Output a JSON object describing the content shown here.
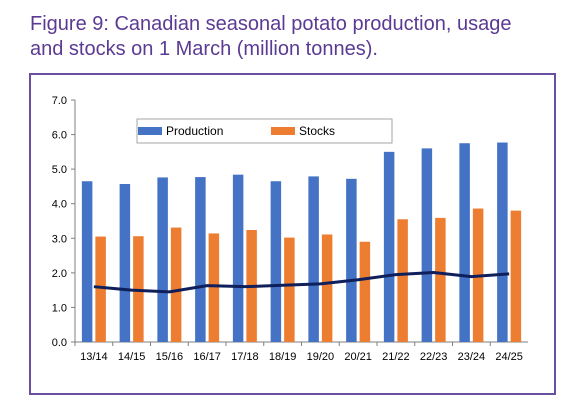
{
  "figure": {
    "title_line1": "Figure 9: Canadian seasonal potato production, usage",
    "title_line2": "and stocks on 1 March (million tonnes)."
  },
  "colors": {
    "production": "#4472c4",
    "stocks": "#ed7d31",
    "usage_line": "#0f1f5c",
    "frame": "#6a4ea0",
    "title": "#5b3a93"
  },
  "chart_data": {
    "type": "bar",
    "categories": [
      "13/14",
      "14/15",
      "15/16",
      "16/17",
      "17/18",
      "18/19",
      "19/20",
      "20/21",
      "21/22",
      "22/23",
      "23/24",
      "24/25"
    ],
    "series": [
      {
        "name": "Production",
        "type": "bar",
        "values": [
          4.65,
          4.57,
          4.76,
          4.77,
          4.84,
          4.65,
          4.79,
          4.72,
          5.5,
          5.6,
          5.75,
          5.77
        ]
      },
      {
        "name": "Stocks",
        "type": "bar",
        "values": [
          3.05,
          3.06,
          3.31,
          3.14,
          3.24,
          3.02,
          3.11,
          2.9,
          3.55,
          3.59,
          3.86,
          3.8
        ]
      },
      {
        "name": "",
        "type": "line",
        "values": [
          1.6,
          1.5,
          1.45,
          1.63,
          1.6,
          1.64,
          1.68,
          1.8,
          1.95,
          2.01,
          1.89,
          1.97
        ]
      }
    ],
    "ylim": [
      0,
      7
    ],
    "yticks": [
      "0.0",
      "1.0",
      "2.0",
      "3.0",
      "4.0",
      "5.0",
      "6.0",
      "7.0"
    ],
    "legend": {
      "placement": "top-left",
      "entries": [
        "Production",
        "Stocks"
      ]
    },
    "grid": false
  }
}
